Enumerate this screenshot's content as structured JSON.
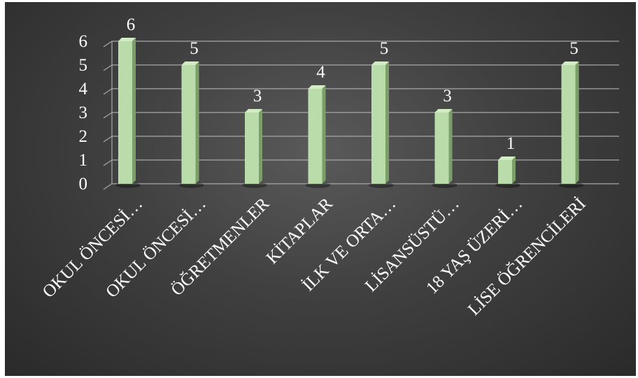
{
  "chart_data": {
    "type": "bar",
    "categories": [
      "OKUL ÖNCESİ…",
      "OKUL ÖNCESİ…",
      "ÖĞRETMENLER",
      "KİTAPLAR",
      "İLK VE ORTA…",
      "LİSANSÜSTÜ…",
      "18 YAŞ ÜZERİ…",
      "LİSE ÖĞRENCİLERİ"
    ],
    "values": [
      6,
      5,
      3,
      4,
      5,
      3,
      1,
      5
    ],
    "ylim": [
      0,
      6
    ],
    "yticks": [
      "0",
      "1",
      "2",
      "3",
      "4",
      "5",
      "6"
    ],
    "data_labels": [
      "6",
      "5",
      "3",
      "4",
      "5",
      "3",
      "1",
      "5"
    ],
    "grid": true,
    "colors": {
      "bar_front": "#b9dcaa",
      "bar_side": "#7c9e68",
      "bar_top": "#d4ecc6",
      "gridline": "#a8a8a8",
      "text": "#ffffff"
    }
  }
}
